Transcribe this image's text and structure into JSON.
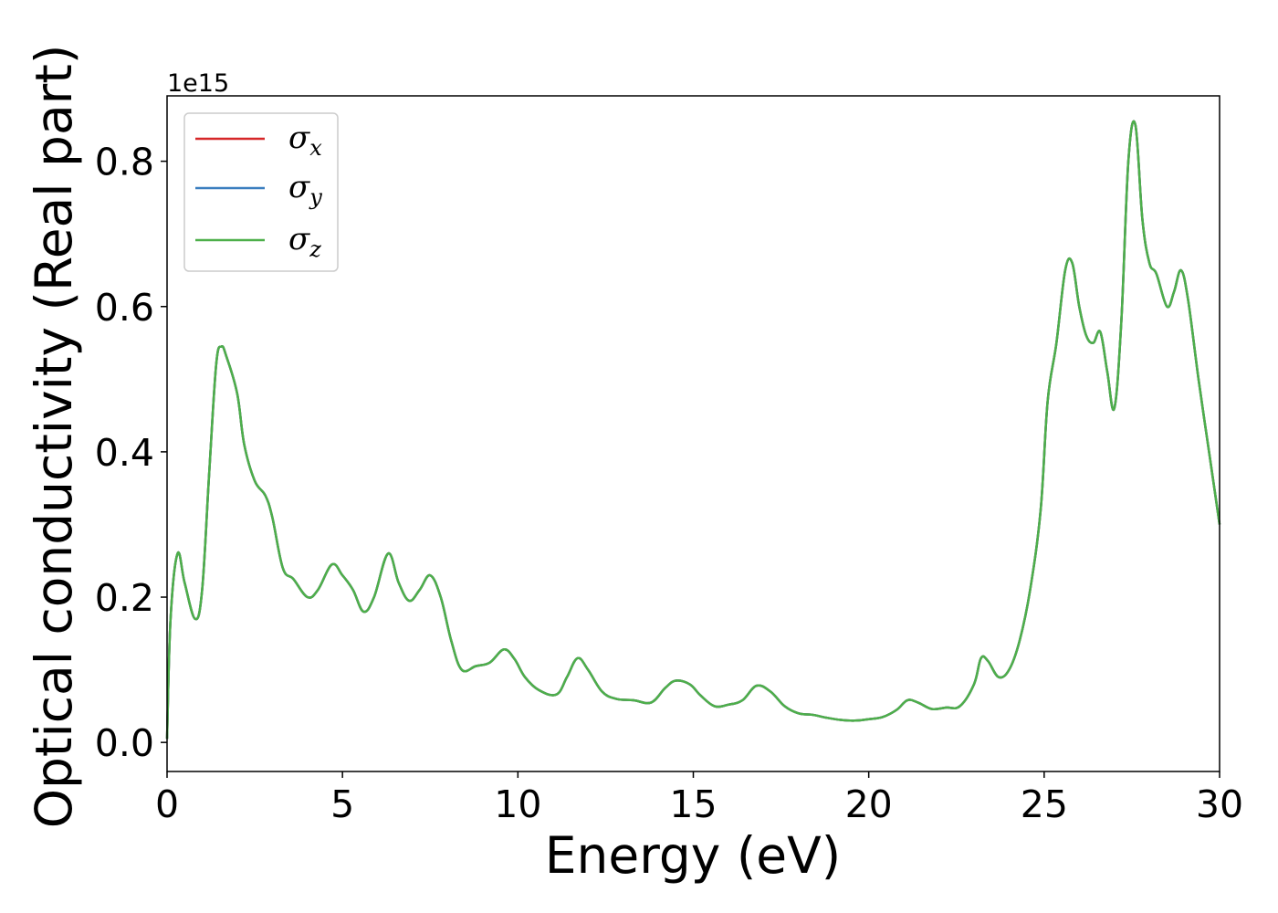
{
  "chart_data": {
    "type": "line",
    "title": "",
    "xlabel": "Energy (eV)",
    "ylabel": "Optical conductivity (Real part)",
    "y_offset_text": "1e15",
    "y_multiplier": 1000000000000000.0,
    "xlim": [
      0,
      30
    ],
    "ylim": [
      -0.04,
      0.89
    ],
    "xticks": [
      0,
      5,
      10,
      15,
      20,
      25,
      30
    ],
    "xtick_labels": [
      "0",
      "5",
      "10",
      "15",
      "20",
      "25",
      "30"
    ],
    "yticks": [
      0.0,
      0.2,
      0.4,
      0.6,
      0.8
    ],
    "ytick_labels": [
      "0.0",
      "0.2",
      "0.4",
      "0.6",
      "0.8"
    ],
    "grid": false,
    "legend_position": "top-left",
    "legend": [
      {
        "symbol": "σ",
        "subscript": "x",
        "color": "#d62728"
      },
      {
        "symbol": "σ",
        "subscript": "y",
        "color": "#3a7ebf"
      },
      {
        "symbol": "σ",
        "subscript": "z",
        "color": "#4daf4a"
      }
    ],
    "x": [
      0,
      0.1,
      0.3,
      0.5,
      0.8,
      1.0,
      1.2,
      1.4,
      1.55,
      1.7,
      2.0,
      2.2,
      2.5,
      2.8,
      3.0,
      3.3,
      3.6,
      4.0,
      4.3,
      4.7,
      5.0,
      5.3,
      5.6,
      5.9,
      6.3,
      6.6,
      6.9,
      7.2,
      7.5,
      7.8,
      8.1,
      8.4,
      8.8,
      9.2,
      9.6,
      9.9,
      10.2,
      10.6,
      11.1,
      11.4,
      11.7,
      12.0,
      12.4,
      12.8,
      13.3,
      13.8,
      14.2,
      14.5,
      14.9,
      15.2,
      15.6,
      16.0,
      16.4,
      16.8,
      17.2,
      17.6,
      18.0,
      18.4,
      18.8,
      19.2,
      19.6,
      20.0,
      20.4,
      20.8,
      21.1,
      21.4,
      21.8,
      22.2,
      22.6,
      23.0,
      23.2,
      23.4,
      23.7,
      24.0,
      24.3,
      24.6,
      24.9,
      25.1,
      25.35,
      25.6,
      25.8,
      26.0,
      26.2,
      26.4,
      26.6,
      26.8,
      27.0,
      27.2,
      27.4,
      27.6,
      27.8,
      28.0,
      28.2,
      28.5,
      28.7,
      28.9,
      29.1,
      29.4,
      29.7,
      30.0
    ],
    "series": [
      {
        "name": "σx",
        "values": [
          0.005,
          0.17,
          0.26,
          0.22,
          0.17,
          0.21,
          0.37,
          0.52,
          0.545,
          0.53,
          0.48,
          0.41,
          0.36,
          0.34,
          0.31,
          0.24,
          0.225,
          0.2,
          0.21,
          0.245,
          0.23,
          0.21,
          0.18,
          0.2,
          0.26,
          0.22,
          0.195,
          0.21,
          0.23,
          0.2,
          0.14,
          0.1,
          0.105,
          0.11,
          0.128,
          0.115,
          0.09,
          0.072,
          0.066,
          0.09,
          0.116,
          0.1,
          0.07,
          0.06,
          0.058,
          0.055,
          0.075,
          0.085,
          0.08,
          0.065,
          0.05,
          0.052,
          0.058,
          0.078,
          0.07,
          0.05,
          0.04,
          0.038,
          0.034,
          0.031,
          0.03,
          0.032,
          0.035,
          0.045,
          0.058,
          0.055,
          0.046,
          0.048,
          0.05,
          0.08,
          0.116,
          0.112,
          0.09,
          0.1,
          0.14,
          0.21,
          0.32,
          0.47,
          0.55,
          0.65,
          0.66,
          0.6,
          0.56,
          0.55,
          0.565,
          0.51,
          0.46,
          0.58,
          0.8,
          0.85,
          0.72,
          0.66,
          0.645,
          0.6,
          0.62,
          0.65,
          0.61,
          0.5,
          0.4,
          0.3
        ]
      },
      {
        "name": "σy",
        "values": [
          0.005,
          0.17,
          0.26,
          0.22,
          0.17,
          0.21,
          0.37,
          0.52,
          0.545,
          0.53,
          0.48,
          0.41,
          0.36,
          0.34,
          0.31,
          0.24,
          0.225,
          0.2,
          0.21,
          0.245,
          0.23,
          0.21,
          0.18,
          0.2,
          0.26,
          0.22,
          0.195,
          0.21,
          0.23,
          0.2,
          0.14,
          0.1,
          0.105,
          0.11,
          0.128,
          0.115,
          0.09,
          0.072,
          0.066,
          0.09,
          0.116,
          0.1,
          0.07,
          0.06,
          0.058,
          0.055,
          0.075,
          0.085,
          0.08,
          0.065,
          0.05,
          0.052,
          0.058,
          0.078,
          0.07,
          0.05,
          0.04,
          0.038,
          0.034,
          0.031,
          0.03,
          0.032,
          0.035,
          0.045,
          0.058,
          0.055,
          0.046,
          0.048,
          0.05,
          0.08,
          0.116,
          0.112,
          0.09,
          0.1,
          0.14,
          0.21,
          0.32,
          0.47,
          0.55,
          0.65,
          0.66,
          0.6,
          0.56,
          0.55,
          0.565,
          0.51,
          0.46,
          0.58,
          0.8,
          0.85,
          0.72,
          0.66,
          0.645,
          0.6,
          0.62,
          0.65,
          0.61,
          0.5,
          0.4,
          0.3
        ]
      },
      {
        "name": "σz",
        "values": [
          0.005,
          0.17,
          0.26,
          0.22,
          0.17,
          0.21,
          0.37,
          0.52,
          0.545,
          0.53,
          0.48,
          0.41,
          0.36,
          0.34,
          0.31,
          0.24,
          0.225,
          0.2,
          0.21,
          0.245,
          0.23,
          0.21,
          0.18,
          0.2,
          0.26,
          0.22,
          0.195,
          0.21,
          0.23,
          0.2,
          0.14,
          0.1,
          0.105,
          0.11,
          0.128,
          0.115,
          0.09,
          0.072,
          0.066,
          0.09,
          0.116,
          0.1,
          0.07,
          0.06,
          0.058,
          0.055,
          0.075,
          0.085,
          0.08,
          0.065,
          0.05,
          0.052,
          0.058,
          0.078,
          0.07,
          0.05,
          0.04,
          0.038,
          0.034,
          0.031,
          0.03,
          0.032,
          0.035,
          0.045,
          0.058,
          0.055,
          0.046,
          0.048,
          0.05,
          0.08,
          0.116,
          0.112,
          0.09,
          0.1,
          0.14,
          0.21,
          0.32,
          0.47,
          0.55,
          0.65,
          0.66,
          0.6,
          0.56,
          0.55,
          0.565,
          0.51,
          0.46,
          0.58,
          0.8,
          0.85,
          0.72,
          0.66,
          0.645,
          0.6,
          0.62,
          0.65,
          0.61,
          0.5,
          0.4,
          0.3
        ]
      }
    ]
  }
}
